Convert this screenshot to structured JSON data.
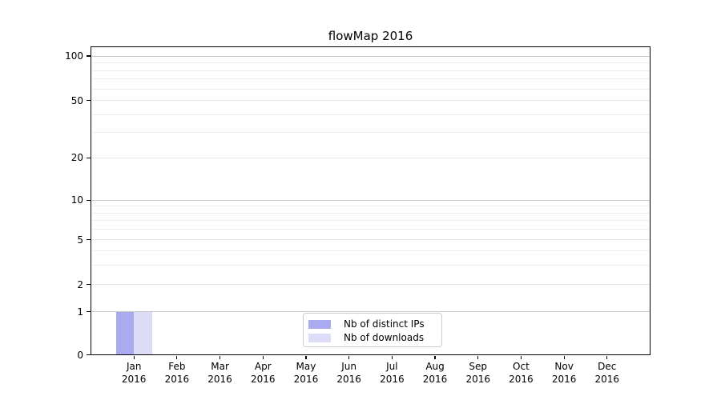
{
  "chart_data": {
    "type": "bar",
    "title": "flowMap 2016",
    "x_categories": [
      {
        "month": "Jan",
        "year": "2016"
      },
      {
        "month": "Feb",
        "year": "2016"
      },
      {
        "month": "Mar",
        "year": "2016"
      },
      {
        "month": "Apr",
        "year": "2016"
      },
      {
        "month": "May",
        "year": "2016"
      },
      {
        "month": "Jun",
        "year": "2016"
      },
      {
        "month": "Jul",
        "year": "2016"
      },
      {
        "month": "Aug",
        "year": "2016"
      },
      {
        "month": "Sep",
        "year": "2016"
      },
      {
        "month": "Oct",
        "year": "2016"
      },
      {
        "month": "Nov",
        "year": "2016"
      },
      {
        "month": "Dec",
        "year": "2016"
      }
    ],
    "series": [
      {
        "name": "Nb of distinct IPs",
        "color": "#aaaaf0",
        "values": [
          1,
          0,
          0,
          0,
          0,
          0,
          0,
          0,
          0,
          0,
          0,
          0
        ]
      },
      {
        "name": "Nb of downloads",
        "color": "#dcdcf7",
        "values": [
          1,
          0,
          0,
          0,
          0,
          0,
          0,
          0,
          0,
          0,
          0,
          0
        ]
      }
    ],
    "y_axis": {
      "scale": "symlog",
      "tick_values": [
        100,
        50,
        20,
        10,
        5,
        2,
        1,
        0
      ],
      "major_grid_values": [
        100,
        10,
        1
      ],
      "labeled_light_grid_values": [
        50,
        20,
        5,
        2
      ],
      "minor_grid_values": [
        90,
        80,
        70,
        60,
        40,
        30,
        9,
        8,
        7,
        6,
        4,
        3
      ],
      "ylim": [
        0,
        115
      ]
    },
    "legend_position": "lower center",
    "grid": "horizontal only"
  },
  "colors": {
    "background": "#ffffff",
    "spine": "#000000",
    "major_grid": "#c8c8c8",
    "labeled_grid": "#e6e6e6",
    "minor_grid": "#ececec",
    "text": "#000000",
    "legend_border": "#cccccc"
  }
}
